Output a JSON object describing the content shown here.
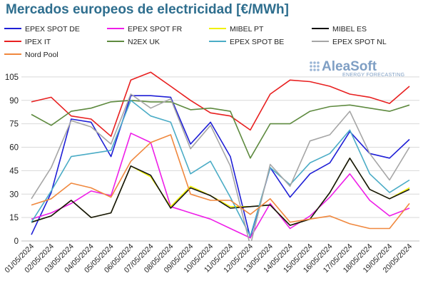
{
  "chart_data": {
    "type": "line",
    "title": "Mercados europeos de electricidad [€/MWh]",
    "xlabel": "",
    "ylabel": "",
    "ylim": [
      0,
      120
    ],
    "yticks": [
      0,
      15,
      30,
      45,
      60,
      75,
      90,
      105
    ],
    "grid": true,
    "legend_position": "top",
    "categories": [
      "01/05/2024",
      "02/05/2024",
      "03/05/2024",
      "04/05/2024",
      "05/05/2024",
      "06/05/2024",
      "07/05/2024",
      "08/05/2024",
      "09/05/2024",
      "10/05/2024",
      "11/05/2024",
      "12/05/2024",
      "13/05/2024",
      "14/05/2024",
      "15/05/2024",
      "16/05/2024",
      "17/05/2024",
      "18/05/2024",
      "19/05/2024",
      "20/05/2024"
    ],
    "series": [
      {
        "name": "EPEX SPOT DE",
        "color": "#1f1fd6",
        "values": [
          4,
          31,
          78,
          76,
          54,
          93,
          93,
          92,
          62,
          76,
          54,
          2,
          47,
          28,
          43,
          50,
          70,
          56,
          53,
          65
        ]
      },
      {
        "name": "EPEX SPOT FR",
        "color": "#ee1ee8",
        "values": [
          14,
          18,
          24,
          32,
          29,
          69,
          63,
          22,
          18,
          14,
          8,
          2,
          24,
          8,
          16,
          28,
          43,
          26,
          16,
          21
        ]
      },
      {
        "name": "MIBEL PT",
        "color": "#f0f000",
        "values": [
          12,
          16,
          26,
          15,
          18,
          48,
          41,
          22,
          35,
          29,
          22,
          22,
          23,
          10,
          14,
          31,
          53,
          33,
          27,
          34
        ]
      },
      {
        "name": "MIBEL ES",
        "color": "#111111",
        "values": [
          12,
          16,
          26,
          15,
          18,
          48,
          42,
          21,
          34,
          29,
          21,
          22,
          23,
          10,
          14,
          31,
          53,
          33,
          27,
          33
        ]
      },
      {
        "name": "IPEX IT",
        "color": "#e82020",
        "values": [
          89,
          92,
          80,
          78,
          67,
          103,
          108,
          99,
          90,
          82,
          80,
          71,
          94,
          103,
          102,
          99,
          94,
          92,
          88,
          99
        ]
      },
      {
        "name": "N2EX UK",
        "color": "#5e8a3f",
        "values": [
          81,
          74,
          83,
          85,
          89,
          90,
          89,
          89,
          84,
          85,
          83,
          53,
          75,
          75,
          83,
          86,
          87,
          85,
          83,
          87
        ]
      },
      {
        "name": "EPEX SPOT BE",
        "color": "#4bacc6",
        "values": [
          12,
          32,
          54,
          56,
          58,
          90,
          80,
          76,
          43,
          51,
          28,
          3,
          47,
          36,
          50,
          56,
          71,
          43,
          31,
          39
        ]
      },
      {
        "name": "EPEX SPOT NL",
        "color": "#a6a6a6",
        "values": [
          27,
          47,
          77,
          73,
          62,
          94,
          85,
          91,
          59,
          74,
          48,
          -3,
          49,
          35,
          64,
          68,
          83,
          56,
          39,
          60
        ]
      },
      {
        "name": "Nord Pool",
        "color": "#f0883e",
        "values": [
          23,
          27,
          37,
          34,
          28,
          51,
          63,
          68,
          30,
          26,
          26,
          17,
          27,
          12,
          14,
          16,
          11,
          8,
          8,
          24
        ]
      }
    ]
  },
  "watermark": {
    "brand": "AleaSoft",
    "tagline": "ENERGY FORECASTING"
  }
}
